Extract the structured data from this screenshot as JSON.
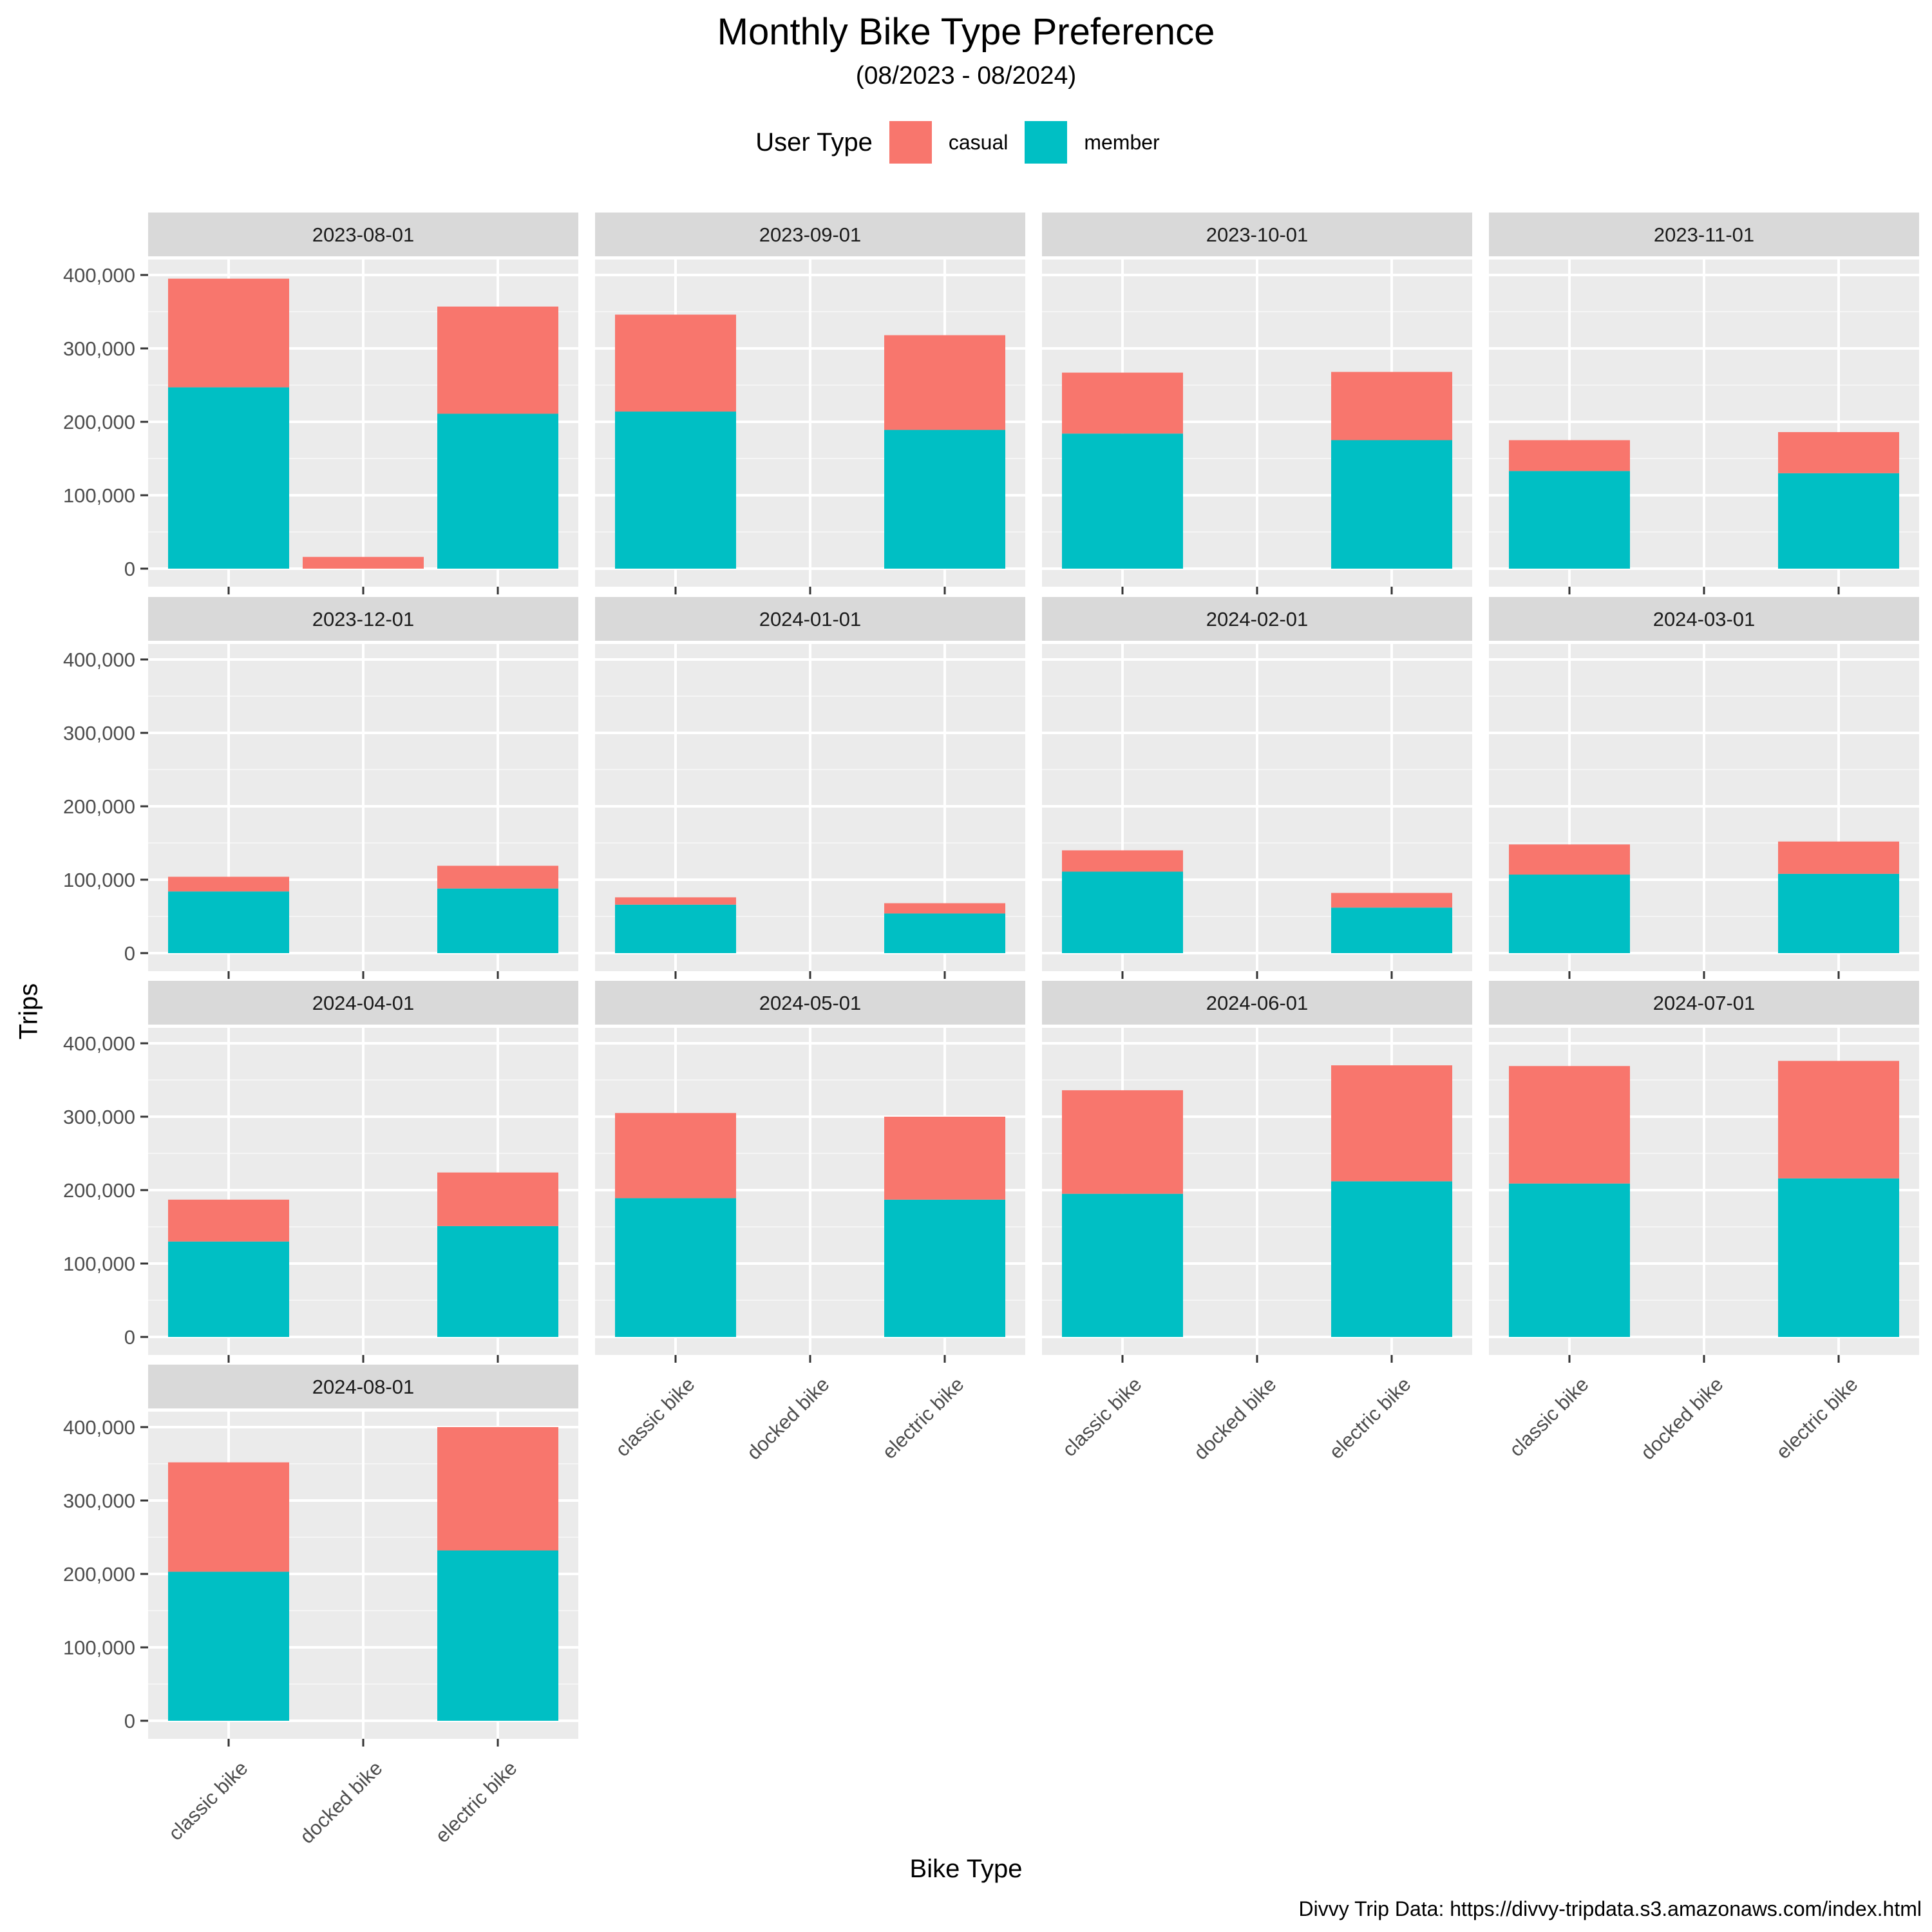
{
  "chart_data": {
    "type": "bar",
    "stacked": true,
    "faceted": true,
    "title": "Monthly Bike Type Preference",
    "subtitle": "(08/2023 - 08/2024)",
    "xlabel": "Bike Type",
    "ylabel": "Trips",
    "caption": "Divvy Trip Data: https://divvy-tripdata.s3.amazonaws.com/index.html",
    "legend": {
      "title": "User Type",
      "position": "top"
    },
    "categories": [
      "classic bike",
      "docked bike",
      "electric bike"
    ],
    "series": [
      {
        "name": "casual",
        "color": "#F8766D"
      },
      {
        "name": "member",
        "color": "#00BFC4"
      }
    ],
    "ylim": [
      0,
      400000
    ],
    "yticks": [
      0,
      100000,
      200000,
      300000,
      400000
    ],
    "ytick_labels": [
      "0",
      "100,000",
      "200,000",
      "300,000",
      "400,000"
    ],
    "grid": true,
    "panels": [
      {
        "label": "2023-08-01",
        "member": [
          247000,
          0,
          211000
        ],
        "casual": [
          148000,
          16000,
          146000
        ]
      },
      {
        "label": "2023-09-01",
        "member": [
          214000,
          0,
          189000
        ],
        "casual": [
          132000,
          0,
          129000
        ]
      },
      {
        "label": "2023-10-01",
        "member": [
          184000,
          0,
          175000
        ],
        "casual": [
          83000,
          0,
          93000
        ]
      },
      {
        "label": "2023-11-01",
        "member": [
          133000,
          0,
          130000
        ],
        "casual": [
          42000,
          0,
          56000
        ]
      },
      {
        "label": "2023-12-01",
        "member": [
          84000,
          0,
          88000
        ],
        "casual": [
          20000,
          0,
          31000
        ]
      },
      {
        "label": "2024-01-01",
        "member": [
          66000,
          0,
          54000
        ],
        "casual": [
          10000,
          0,
          14000
        ]
      },
      {
        "label": "2024-02-01",
        "member": [
          111000,
          0,
          62000
        ],
        "casual": [
          29000,
          0,
          20000
        ]
      },
      {
        "label": "2024-03-01",
        "member": [
          107000,
          0,
          108000
        ],
        "casual": [
          41000,
          0,
          44000
        ]
      },
      {
        "label": "2024-04-01",
        "member": [
          130000,
          0,
          151000
        ],
        "casual": [
          57000,
          0,
          73000
        ]
      },
      {
        "label": "2024-05-01",
        "member": [
          189000,
          0,
          187000
        ],
        "casual": [
          116000,
          0,
          113000
        ]
      },
      {
        "label": "2024-06-01",
        "member": [
          195000,
          0,
          212000
        ],
        "casual": [
          141000,
          0,
          158000
        ]
      },
      {
        "label": "2024-07-01",
        "member": [
          209000,
          0,
          216000
        ],
        "casual": [
          160000,
          0,
          160000
        ]
      },
      {
        "label": "2024-08-01",
        "member": [
          203000,
          0,
          232000
        ],
        "casual": [
          149000,
          0,
          168000
        ]
      }
    ]
  }
}
